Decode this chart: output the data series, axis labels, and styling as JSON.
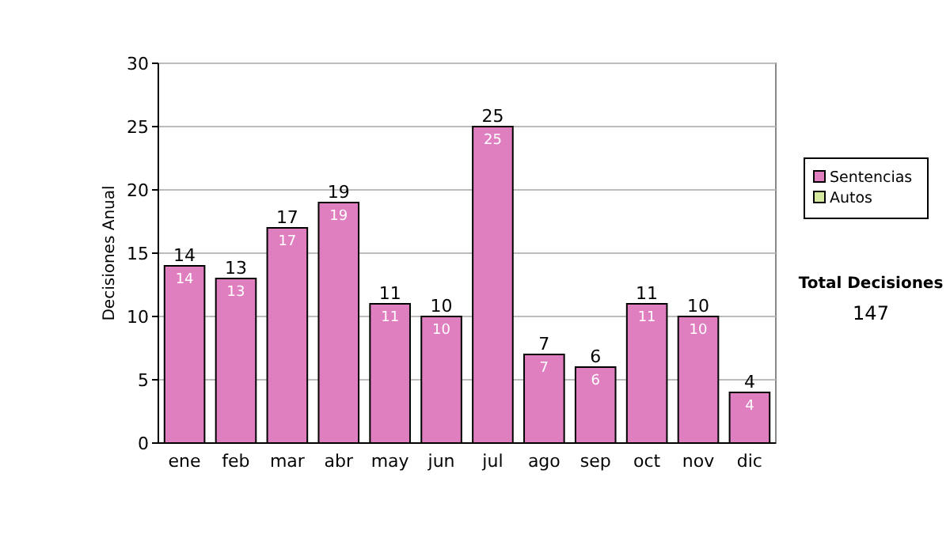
{
  "chart_data": {
    "type": "bar",
    "ylabel": "Decisiones Anual",
    "categories": [
      "ene",
      "feb",
      "mar",
      "abr",
      "may",
      "jun",
      "jul",
      "ago",
      "sep",
      "oct",
      "nov",
      "dic"
    ],
    "series": [
      {
        "name": "Sentencias",
        "color": "#e07fc0",
        "values": [
          14,
          13,
          17,
          19,
          11,
          10,
          25,
          7,
          6,
          11,
          10,
          4
        ],
        "value_labels": [
          "14",
          "13",
          "17",
          "19",
          "11",
          "10",
          "25",
          "7",
          "6",
          "11",
          "10",
          "4"
        ]
      },
      {
        "name": "Autos",
        "color": "#d4e8a0",
        "values": [
          0,
          0,
          0,
          0,
          0,
          0,
          0,
          0,
          0,
          0,
          0,
          0
        ],
        "value_labels": [
          null,
          null,
          null,
          null,
          null,
          null,
          null,
          null,
          null,
          null,
          null,
          null
        ]
      }
    ],
    "stacked": true,
    "totals": [
      "14",
      "13",
      "17",
      "19",
      "11",
      "10",
      "25",
      "7",
      "6",
      "11",
      "10",
      "4"
    ],
    "ylim": [
      0,
      30
    ],
    "yticks": [
      0,
      5,
      10,
      15,
      20,
      25,
      30
    ],
    "grid": "y",
    "legend": "right",
    "annotations": [
      "Total Decisiones",
      "147"
    ]
  }
}
